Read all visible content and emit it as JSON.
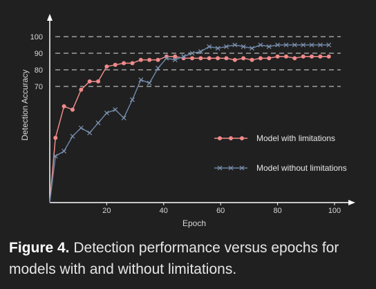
{
  "chart_data": {
    "type": "line",
    "xlabel": "Epoch",
    "ylabel": "Detection Accuracy",
    "xlim": [
      0,
      100
    ],
    "ylim": [
      0,
      100
    ],
    "x_ticks": [
      20,
      40,
      60,
      80,
      100
    ],
    "y_ticks": [
      70,
      80,
      90,
      100
    ],
    "grid": "horizontal dashed at 70, 80, 90, 100",
    "legend_position": "center-right",
    "series": [
      {
        "name": "Model with limitations",
        "color": "#f08a8a",
        "marker": "circle",
        "x": [
          0,
          2,
          5,
          8,
          11,
          14,
          17,
          20,
          23,
          26,
          29,
          32,
          35,
          38,
          41,
          44,
          47,
          50,
          53,
          56,
          59,
          62,
          65,
          68,
          71,
          74,
          77,
          80,
          83,
          86,
          89,
          92,
          95,
          98
        ],
        "y": [
          0,
          39,
          58,
          56,
          68,
          73,
          73,
          82,
          83,
          84,
          84,
          86,
          86,
          86,
          88,
          88,
          87,
          87,
          87,
          87,
          87,
          87,
          86,
          87,
          86,
          87,
          87,
          88,
          88,
          87,
          88,
          88,
          88,
          88
        ]
      },
      {
        "name": "Model without limitations",
        "color": "#6d86a6",
        "marker": "x",
        "x": [
          0,
          2,
          5,
          8,
          11,
          14,
          17,
          20,
          23,
          26,
          29,
          32,
          35,
          38,
          41,
          44,
          47,
          50,
          53,
          56,
          59,
          62,
          65,
          68,
          71,
          74,
          77,
          80,
          83,
          86,
          89,
          92,
          95,
          98
        ],
        "y": [
          0,
          28,
          31,
          40,
          45,
          42,
          48,
          54,
          56,
          51,
          62,
          74,
          72,
          81,
          87,
          86,
          88,
          90,
          91,
          94,
          93,
          94,
          95,
          94,
          93,
          95,
          94,
          95,
          95,
          95,
          95,
          95,
          95,
          95
        ]
      }
    ]
  },
  "caption": {
    "label": "Figure 4.",
    "text": " Detection performance versus epochs for models with and without limitations."
  }
}
